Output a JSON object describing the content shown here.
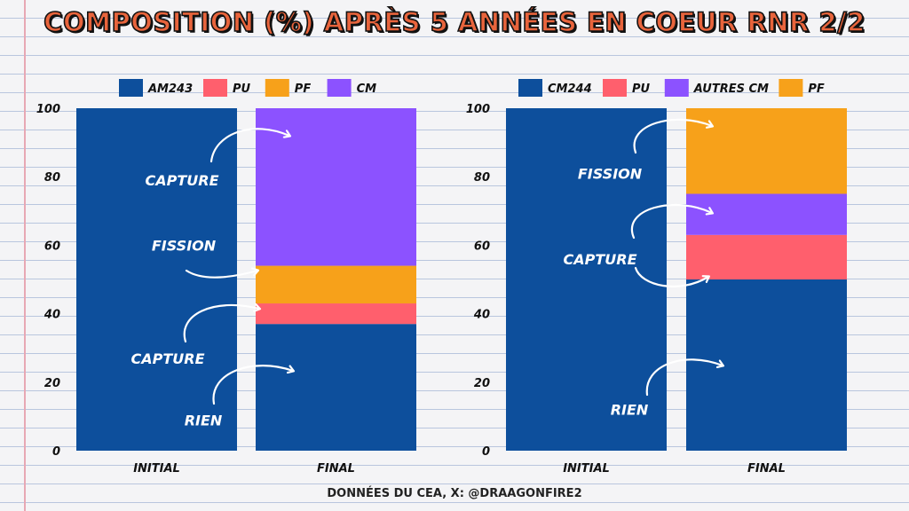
{
  "page": {
    "title": "COMPOSITION (%) APRÈS 5 ANNÉES EN COEUR RNR 2/2",
    "footer": "DONNÉES DU CEA, X: @DRAAGONFIRE2"
  },
  "chart_data": [
    {
      "type": "bar",
      "stacked": true,
      "categories": [
        "INITIAL",
        "FINAL"
      ],
      "ylim": [
        0,
        100
      ],
      "yticks": [
        0,
        20,
        40,
        60,
        80,
        100
      ],
      "legend_position": "top",
      "series": [
        {
          "name": "AM243",
          "color": "#0d4f9c",
          "values": [
            100,
            37
          ]
        },
        {
          "name": "PU",
          "color": "#ff5f6d",
          "values": [
            0,
            6
          ]
        },
        {
          "name": "PF",
          "color": "#f7a11a",
          "values": [
            0,
            11
          ]
        },
        {
          "name": "CM",
          "color": "#8c52ff",
          "values": [
            0,
            46
          ]
        }
      ],
      "annotations": [
        {
          "text": "CAPTURE",
          "y": 79
        },
        {
          "text": "FISSION",
          "y": 60
        },
        {
          "text": "CAPTURE",
          "y": 27
        },
        {
          "text": "RIEN",
          "y": 9
        }
      ]
    },
    {
      "type": "bar",
      "stacked": true,
      "categories": [
        "INITIAL",
        "FINAL"
      ],
      "ylim": [
        0,
        100
      ],
      "yticks": [
        0,
        20,
        40,
        60,
        80,
        100
      ],
      "legend_position": "top",
      "series": [
        {
          "name": "CM244",
          "color": "#0d4f9c",
          "values": [
            100,
            50
          ]
        },
        {
          "name": "PU",
          "color": "#ff5f6d",
          "values": [
            0,
            13
          ]
        },
        {
          "name": "AUTRES CM",
          "color": "#8c52ff",
          "values": [
            0,
            12
          ]
        },
        {
          "name": "PF",
          "color": "#f7a11a",
          "values": [
            0,
            25
          ]
        }
      ],
      "annotations": [
        {
          "text": "FISSION",
          "y": 81
        },
        {
          "text": "CAPTURE",
          "y": 56
        },
        {
          "text": "RIEN",
          "y": 12
        }
      ]
    }
  ]
}
